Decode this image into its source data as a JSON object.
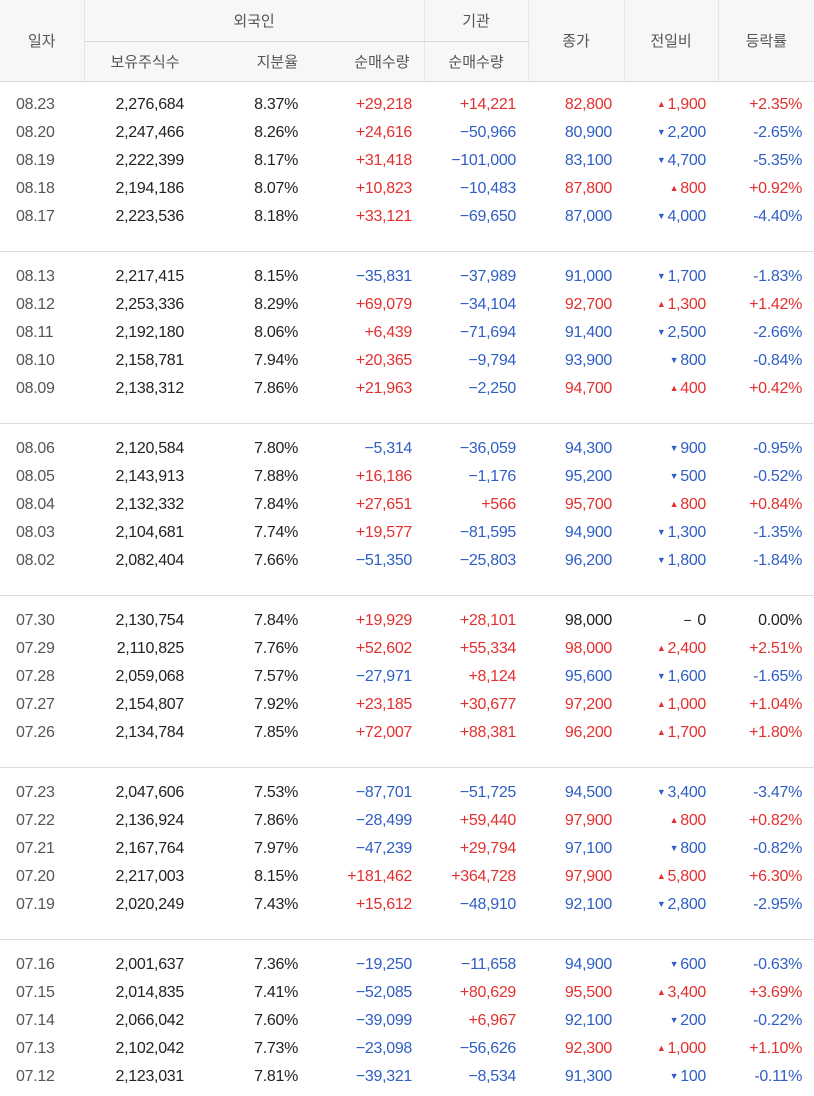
{
  "header": {
    "date": "일자",
    "foreign": "외국인",
    "institution": "기관",
    "close": "종가",
    "change": "전일비",
    "rate": "등락률",
    "holdings": "보유주식수",
    "share_ratio": "지분율",
    "net_foreign": "순매수량",
    "net_institution": "순매수량"
  },
  "colors": {
    "up": "#e3302f",
    "down": "#2f5ec4",
    "flat": "#222222"
  },
  "groups": [
    [
      {
        "date": "08.23",
        "holdings": "2,276,684",
        "ratio": "8.37%",
        "foreign": "+29,218",
        "institution": "+14,221",
        "close": "82,800",
        "dir": "up",
        "change": "1,900",
        "rate": "+2.35%"
      },
      {
        "date": "08.20",
        "holdings": "2,247,466",
        "ratio": "8.26%",
        "foreign": "+24,616",
        "institution": "−50,966",
        "close": "80,900",
        "dir": "down",
        "change": "2,200",
        "rate": "-2.65%"
      },
      {
        "date": "08.19",
        "holdings": "2,222,399",
        "ratio": "8.17%",
        "foreign": "+31,418",
        "institution": "−101,000",
        "close": "83,100",
        "dir": "down",
        "change": "4,700",
        "rate": "-5.35%"
      },
      {
        "date": "08.18",
        "holdings": "2,194,186",
        "ratio": "8.07%",
        "foreign": "+10,823",
        "institution": "−10,483",
        "close": "87,800",
        "dir": "up",
        "change": "800",
        "rate": "+0.92%"
      },
      {
        "date": "08.17",
        "holdings": "2,223,536",
        "ratio": "8.18%",
        "foreign": "+33,121",
        "institution": "−69,650",
        "close": "87,000",
        "dir": "down",
        "change": "4,000",
        "rate": "-4.40%"
      }
    ],
    [
      {
        "date": "08.13",
        "holdings": "2,217,415",
        "ratio": "8.15%",
        "foreign": "−35,831",
        "institution": "−37,989",
        "close": "91,000",
        "dir": "down",
        "change": "1,700",
        "rate": "-1.83%"
      },
      {
        "date": "08.12",
        "holdings": "2,253,336",
        "ratio": "8.29%",
        "foreign": "+69,079",
        "institution": "−34,104",
        "close": "92,700",
        "dir": "up",
        "change": "1,300",
        "rate": "+1.42%"
      },
      {
        "date": "08.11",
        "holdings": "2,192,180",
        "ratio": "8.06%",
        "foreign": "+6,439",
        "institution": "−71,694",
        "close": "91,400",
        "dir": "down",
        "change": "2,500",
        "rate": "-2.66%"
      },
      {
        "date": "08.10",
        "holdings": "2,158,781",
        "ratio": "7.94%",
        "foreign": "+20,365",
        "institution": "−9,794",
        "close": "93,900",
        "dir": "down",
        "change": "800",
        "rate": "-0.84%"
      },
      {
        "date": "08.09",
        "holdings": "2,138,312",
        "ratio": "7.86%",
        "foreign": "+21,963",
        "institution": "−2,250",
        "close": "94,700",
        "dir": "up",
        "change": "400",
        "rate": "+0.42%"
      }
    ],
    [
      {
        "date": "08.06",
        "holdings": "2,120,584",
        "ratio": "7.80%",
        "foreign": "−5,314",
        "institution": "−36,059",
        "close": "94,300",
        "dir": "down",
        "change": "900",
        "rate": "-0.95%"
      },
      {
        "date": "08.05",
        "holdings": "2,143,913",
        "ratio": "7.88%",
        "foreign": "+16,186",
        "institution": "−1,176",
        "close": "95,200",
        "dir": "down",
        "change": "500",
        "rate": "-0.52%"
      },
      {
        "date": "08.04",
        "holdings": "2,132,332",
        "ratio": "7.84%",
        "foreign": "+27,651",
        "institution": "+566",
        "close": "95,700",
        "dir": "up",
        "change": "800",
        "rate": "+0.84%"
      },
      {
        "date": "08.03",
        "holdings": "2,104,681",
        "ratio": "7.74%",
        "foreign": "+19,577",
        "institution": "−81,595",
        "close": "94,900",
        "dir": "down",
        "change": "1,300",
        "rate": "-1.35%"
      },
      {
        "date": "08.02",
        "holdings": "2,082,404",
        "ratio": "7.66%",
        "foreign": "−51,350",
        "institution": "−25,803",
        "close": "96,200",
        "dir": "down",
        "change": "1,800",
        "rate": "-1.84%"
      }
    ],
    [
      {
        "date": "07.30",
        "holdings": "2,130,754",
        "ratio": "7.84%",
        "foreign": "+19,929",
        "institution": "+28,101",
        "close": "98,000",
        "dir": "flat",
        "change": "0",
        "rate": "0.00%"
      },
      {
        "date": "07.29",
        "holdings": "2,110,825",
        "ratio": "7.76%",
        "foreign": "+52,602",
        "institution": "+55,334",
        "close": "98,000",
        "dir": "up",
        "change": "2,400",
        "rate": "+2.51%"
      },
      {
        "date": "07.28",
        "holdings": "2,059,068",
        "ratio": "7.57%",
        "foreign": "−27,971",
        "institution": "+8,124",
        "close": "95,600",
        "dir": "down",
        "change": "1,600",
        "rate": "-1.65%"
      },
      {
        "date": "07.27",
        "holdings": "2,154,807",
        "ratio": "7.92%",
        "foreign": "+23,185",
        "institution": "+30,677",
        "close": "97,200",
        "dir": "up",
        "change": "1,000",
        "rate": "+1.04%"
      },
      {
        "date": "07.26",
        "holdings": "2,134,784",
        "ratio": "7.85%",
        "foreign": "+72,007",
        "institution": "+88,381",
        "close": "96,200",
        "dir": "up",
        "change": "1,700",
        "rate": "+1.80%"
      }
    ],
    [
      {
        "date": "07.23",
        "holdings": "2,047,606",
        "ratio": "7.53%",
        "foreign": "−87,701",
        "institution": "−51,725",
        "close": "94,500",
        "dir": "down",
        "change": "3,400",
        "rate": "-3.47%"
      },
      {
        "date": "07.22",
        "holdings": "2,136,924",
        "ratio": "7.86%",
        "foreign": "−28,499",
        "institution": "+59,440",
        "close": "97,900",
        "dir": "up",
        "change": "800",
        "rate": "+0.82%"
      },
      {
        "date": "07.21",
        "holdings": "2,167,764",
        "ratio": "7.97%",
        "foreign": "−47,239",
        "institution": "+29,794",
        "close": "97,100",
        "dir": "down",
        "change": "800",
        "rate": "-0.82%"
      },
      {
        "date": "07.20",
        "holdings": "2,217,003",
        "ratio": "8.15%",
        "foreign": "+181,462",
        "institution": "+364,728",
        "close": "97,900",
        "dir": "up",
        "change": "5,800",
        "rate": "+6.30%"
      },
      {
        "date": "07.19",
        "holdings": "2,020,249",
        "ratio": "7.43%",
        "foreign": "+15,612",
        "institution": "−48,910",
        "close": "92,100",
        "dir": "down",
        "change": "2,800",
        "rate": "-2.95%"
      }
    ],
    [
      {
        "date": "07.16",
        "holdings": "2,001,637",
        "ratio": "7.36%",
        "foreign": "−19,250",
        "institution": "−11,658",
        "close": "94,900",
        "dir": "down",
        "change": "600",
        "rate": "-0.63%"
      },
      {
        "date": "07.15",
        "holdings": "2,014,835",
        "ratio": "7.41%",
        "foreign": "−52,085",
        "institution": "+80,629",
        "close": "95,500",
        "dir": "up",
        "change": "3,400",
        "rate": "+3.69%"
      },
      {
        "date": "07.14",
        "holdings": "2,066,042",
        "ratio": "7.60%",
        "foreign": "−39,099",
        "institution": "+6,967",
        "close": "92,100",
        "dir": "down",
        "change": "200",
        "rate": "-0.22%"
      },
      {
        "date": "07.13",
        "holdings": "2,102,042",
        "ratio": "7.73%",
        "foreign": "−23,098",
        "institution": "−56,626",
        "close": "92,300",
        "dir": "up",
        "change": "1,000",
        "rate": "+1.10%"
      },
      {
        "date": "07.12",
        "holdings": "2,123,031",
        "ratio": "7.81%",
        "foreign": "−39,321",
        "institution": "−8,534",
        "close": "91,300",
        "dir": "down",
        "change": "100",
        "rate": "-0.11%"
      }
    ]
  ]
}
